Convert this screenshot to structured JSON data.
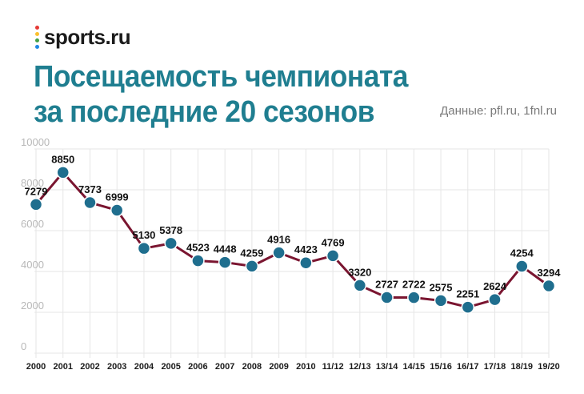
{
  "logo": {
    "text": "sports.ru",
    "dot_colors": [
      "#e53935",
      "#fbc02d",
      "#43a047",
      "#1e88e5"
    ]
  },
  "header": {
    "title_line1": "Посещаемость чемпионата",
    "title_line2": "за последние 20 сезонов",
    "source": "Данные: pfl.ru, 1fnl.ru"
  },
  "colors": {
    "line": "#7a1530",
    "marker": "#1f6e8e",
    "grid": "#e6e6e6",
    "title": "#1f7e90"
  },
  "chart_data": {
    "type": "line",
    "title": "Посещаемость чемпионата за последние 20 сезонов",
    "xlabel": "",
    "ylabel": "",
    "ylim": [
      0,
      10000
    ],
    "yticks": [
      0,
      2000,
      4000,
      6000,
      8000,
      10000
    ],
    "grid": true,
    "categories": [
      "2000",
      "2001",
      "2002",
      "2003",
      "2004",
      "2005",
      "2006",
      "2007",
      "2008",
      "2009",
      "2010",
      "11/12",
      "12/13",
      "13/14",
      "14/15",
      "15/16",
      "16/17",
      "17/18",
      "18/19",
      "19/20"
    ],
    "series": [
      {
        "name": "Посещаемость",
        "values": [
          7279,
          8850,
          7373,
          6999,
          5130,
          5378,
          4523,
          4448,
          4259,
          4916,
          4423,
          4769,
          3320,
          2727,
          2722,
          2575,
          2251,
          2624,
          4254,
          3294
        ]
      }
    ]
  }
}
